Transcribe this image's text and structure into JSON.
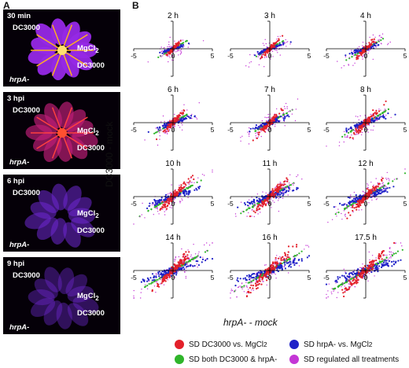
{
  "panel_a": {
    "letter": "A",
    "photos": [
      {
        "time": "30 min",
        "labels": [
          "DC3000",
          "MgCl",
          "DC3000",
          "hrpA-"
        ]
      },
      {
        "time": "3 hpi",
        "labels": [
          "DC3000",
          "MgCl",
          "DC3000",
          "hrpA-"
        ]
      },
      {
        "time": "6 hpi",
        "labels": [
          "DC3000",
          "MgCl",
          "DC3000",
          "hrpA-"
        ]
      },
      {
        "time": "9 hpi",
        "labels": [
          "DC3000",
          "MgCl",
          "DC3000",
          "hrpA-"
        ]
      }
    ],
    "subscript": "2"
  },
  "panel_b": {
    "letter": "B",
    "ylabel": "DC3000 - mock",
    "xlabel": "hrpA- - mock",
    "legend": [
      {
        "label": "SD DC3000 vs. MgCl",
        "sub": "2",
        "color": "#e3202a"
      },
      {
        "label": "SD hrpA- vs. MgCl",
        "sub": "2",
        "color": "#1f22c8"
      },
      {
        "label": "SD both DC3000 & hrpA-",
        "sub": "",
        "color": "#2fb52a"
      },
      {
        "label": "SD regulated all treatments",
        "sub": "",
        "color": "#c436d6"
      }
    ]
  },
  "chart_data": {
    "type": "scatter",
    "xlim": [
      -5,
      5
    ],
    "ylim": [
      -5,
      5
    ],
    "ticks": [
      -5,
      0,
      5
    ],
    "panels": [
      "2 h",
      "3 h",
      "4 h",
      "6 h",
      "7 h",
      "8 h",
      "10 h",
      "11 h",
      "12 h",
      "14 h",
      "16 h",
      "17.5 h"
    ],
    "series": [
      {
        "name": "SD DC3000 vs. MgCl2",
        "color": "#e3202a"
      },
      {
        "name": "SD hrpA- vs. MgCl2",
        "color": "#1f22c8"
      },
      {
        "name": "SD both DC3000 & hrpA-",
        "color": "#2fb52a"
      },
      {
        "name": "SD regulated all treatments",
        "color": "#c436d6"
      }
    ]
  }
}
